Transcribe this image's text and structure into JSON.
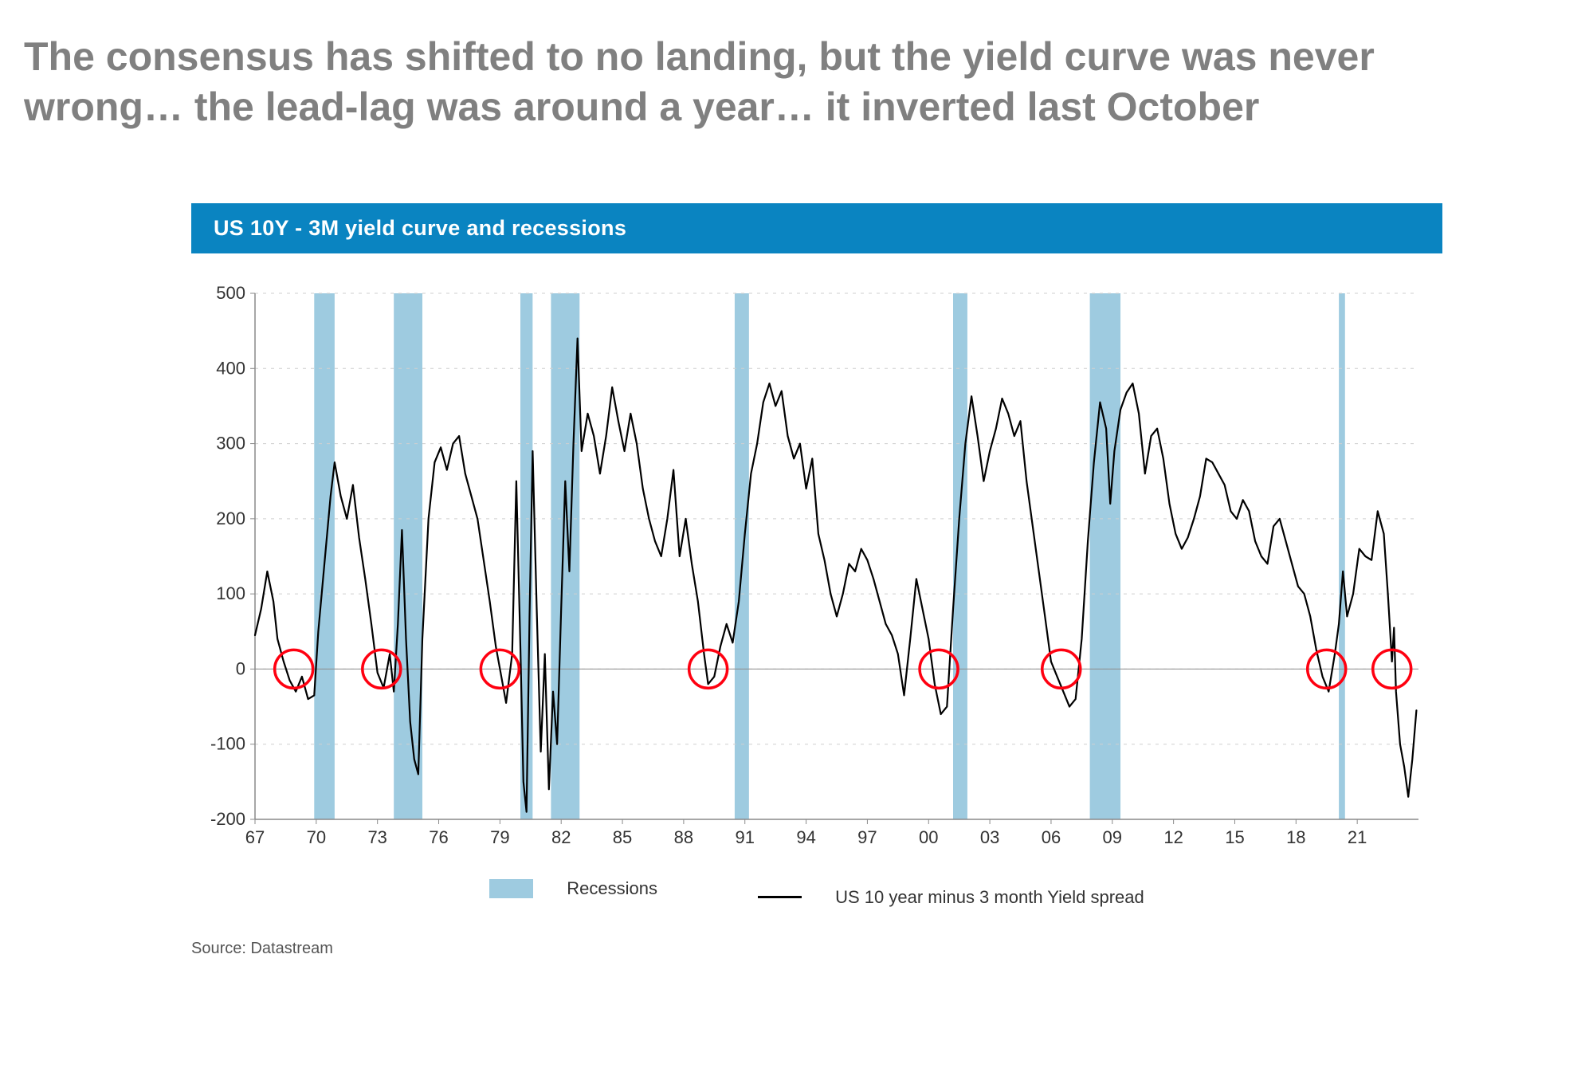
{
  "headline": "The consensus has shifted to no landing, but the yield curve was never wrong… the lead-lag was around a year… it inverted last October",
  "chart": {
    "type": "line",
    "title": "US 10Y - 3M yield curve and recessions",
    "title_bg": "#0a84c1",
    "title_color": "#ffffff",
    "title_fontsize": 27,
    "background_color": "#ffffff",
    "axis_color": "#8a8a8a",
    "grid_color": "#cfcfcf",
    "line_color": "#000000",
    "line_width": 2.2,
    "recession_color": "#9ecbe0",
    "circle_color": "#ff0010",
    "circle_stroke": 3.5,
    "circle_radius": 24,
    "xlim": [
      1967,
      2024
    ],
    "ylim": [
      -200,
      500
    ],
    "xticks": [
      67,
      70,
      73,
      76,
      79,
      82,
      85,
      88,
      91,
      94,
      97,
      100,
      103,
      106,
      109,
      112,
      115,
      118,
      121
    ],
    "xtick_labels": [
      "67",
      "70",
      "73",
      "76",
      "79",
      "82",
      "85",
      "88",
      "91",
      "94",
      "97",
      "00",
      "03",
      "06",
      "09",
      "12",
      "15",
      "18",
      "21"
    ],
    "yticks": [
      -200,
      -100,
      0,
      100,
      200,
      300,
      400,
      500
    ],
    "ytick_labels": [
      "-200",
      "-100",
      "0",
      "100",
      "200",
      "300",
      "400",
      "500"
    ],
    "tick_fontsize": 22,
    "tick_color": "#333333",
    "recessions": [
      {
        "start": 1969.9,
        "end": 1970.9
      },
      {
        "start": 1973.8,
        "end": 1975.2
      },
      {
        "start": 1980.0,
        "end": 1980.6
      },
      {
        "start": 1981.5,
        "end": 1982.9
      },
      {
        "start": 1990.5,
        "end": 1991.2
      },
      {
        "start": 2001.2,
        "end": 2001.9
      },
      {
        "start": 2007.9,
        "end": 2009.4
      },
      {
        "start": 2020.1,
        "end": 2020.4
      }
    ],
    "circle_years": [
      1968.9,
      1973.2,
      1979.0,
      1989.2,
      2000.5,
      2006.5,
      2019.5,
      2022.7
    ],
    "series": {
      "name": "US 10 year minus 3 month Yield spread",
      "data": [
        [
          1967.0,
          45
        ],
        [
          1967.3,
          80
        ],
        [
          1967.6,
          130
        ],
        [
          1967.9,
          90
        ],
        [
          1968.1,
          40
        ],
        [
          1968.4,
          10
        ],
        [
          1968.7,
          -15
        ],
        [
          1969.0,
          -30
        ],
        [
          1969.3,
          -10
        ],
        [
          1969.6,
          -40
        ],
        [
          1969.9,
          -35
        ],
        [
          1970.1,
          50
        ],
        [
          1970.4,
          140
        ],
        [
          1970.7,
          230
        ],
        [
          1970.9,
          275
        ],
        [
          1971.2,
          230
        ],
        [
          1971.5,
          200
        ],
        [
          1971.8,
          245
        ],
        [
          1972.1,
          175
        ],
        [
          1972.4,
          120
        ],
        [
          1972.7,
          60
        ],
        [
          1973.0,
          -5
        ],
        [
          1973.3,
          -25
        ],
        [
          1973.6,
          20
        ],
        [
          1973.8,
          -30
        ],
        [
          1974.0,
          60
        ],
        [
          1974.2,
          185
        ],
        [
          1974.4,
          40
        ],
        [
          1974.6,
          -70
        ],
        [
          1974.8,
          -120
        ],
        [
          1975.0,
          -140
        ],
        [
          1975.2,
          40
        ],
        [
          1975.5,
          200
        ],
        [
          1975.8,
          275
        ],
        [
          1976.1,
          295
        ],
        [
          1976.4,
          265
        ],
        [
          1976.7,
          300
        ],
        [
          1977.0,
          310
        ],
        [
          1977.3,
          260
        ],
        [
          1977.6,
          230
        ],
        [
          1977.9,
          200
        ],
        [
          1978.2,
          145
        ],
        [
          1978.5,
          90
        ],
        [
          1978.8,
          30
        ],
        [
          1979.0,
          0
        ],
        [
          1979.3,
          -45
        ],
        [
          1979.6,
          20
        ],
        [
          1979.8,
          250
        ],
        [
          1980.0,
          30
        ],
        [
          1980.15,
          -150
        ],
        [
          1980.3,
          -190
        ],
        [
          1980.45,
          70
        ],
        [
          1980.6,
          290
        ],
        [
          1980.8,
          80
        ],
        [
          1981.0,
          -110
        ],
        [
          1981.2,
          20
        ],
        [
          1981.4,
          -160
        ],
        [
          1981.6,
          -30
        ],
        [
          1981.8,
          -100
        ],
        [
          1982.0,
          80
        ],
        [
          1982.2,
          250
        ],
        [
          1982.4,
          130
        ],
        [
          1982.6,
          300
        ],
        [
          1982.8,
          440
        ],
        [
          1983.0,
          290
        ],
        [
          1983.3,
          340
        ],
        [
          1983.6,
          310
        ],
        [
          1983.9,
          260
        ],
        [
          1984.2,
          310
        ],
        [
          1984.5,
          375
        ],
        [
          1984.8,
          330
        ],
        [
          1985.1,
          290
        ],
        [
          1985.4,
          340
        ],
        [
          1985.7,
          300
        ],
        [
          1986.0,
          240
        ],
        [
          1986.3,
          200
        ],
        [
          1986.6,
          170
        ],
        [
          1986.9,
          150
        ],
        [
          1987.2,
          200
        ],
        [
          1987.5,
          265
        ],
        [
          1987.8,
          150
        ],
        [
          1988.1,
          200
        ],
        [
          1988.4,
          140
        ],
        [
          1988.7,
          90
        ],
        [
          1989.0,
          20
        ],
        [
          1989.2,
          -20
        ],
        [
          1989.5,
          -10
        ],
        [
          1989.8,
          30
        ],
        [
          1990.1,
          60
        ],
        [
          1990.4,
          35
        ],
        [
          1990.7,
          90
        ],
        [
          1991.0,
          180
        ],
        [
          1991.3,
          260
        ],
        [
          1991.6,
          300
        ],
        [
          1991.9,
          355
        ],
        [
          1992.2,
          380
        ],
        [
          1992.5,
          350
        ],
        [
          1992.8,
          370
        ],
        [
          1993.1,
          310
        ],
        [
          1993.4,
          280
        ],
        [
          1993.7,
          300
        ],
        [
          1994.0,
          240
        ],
        [
          1994.3,
          280
        ],
        [
          1994.6,
          180
        ],
        [
          1994.9,
          145
        ],
        [
          1995.2,
          100
        ],
        [
          1995.5,
          70
        ],
        [
          1995.8,
          100
        ],
        [
          1996.1,
          140
        ],
        [
          1996.4,
          130
        ],
        [
          1996.7,
          160
        ],
        [
          1997.0,
          145
        ],
        [
          1997.3,
          120
        ],
        [
          1997.6,
          90
        ],
        [
          1997.9,
          60
        ],
        [
          1998.2,
          45
        ],
        [
          1998.5,
          20
        ],
        [
          1998.8,
          -35
        ],
        [
          1999.1,
          40
        ],
        [
          1999.4,
          120
        ],
        [
          1999.7,
          80
        ],
        [
          2000.0,
          40
        ],
        [
          2000.3,
          -20
        ],
        [
          2000.6,
          -60
        ],
        [
          2000.9,
          -50
        ],
        [
          2001.2,
          80
        ],
        [
          2001.5,
          200
        ],
        [
          2001.8,
          300
        ],
        [
          2002.1,
          363
        ],
        [
          2002.4,
          310
        ],
        [
          2002.7,
          250
        ],
        [
          2003.0,
          290
        ],
        [
          2003.3,
          320
        ],
        [
          2003.6,
          360
        ],
        [
          2003.9,
          340
        ],
        [
          2004.2,
          310
        ],
        [
          2004.5,
          330
        ],
        [
          2004.8,
          250
        ],
        [
          2005.1,
          190
        ],
        [
          2005.4,
          130
        ],
        [
          2005.7,
          70
        ],
        [
          2006.0,
          10
        ],
        [
          2006.3,
          -10
        ],
        [
          2006.6,
          -30
        ],
        [
          2006.9,
          -50
        ],
        [
          2007.2,
          -40
        ],
        [
          2007.5,
          40
        ],
        [
          2007.8,
          170
        ],
        [
          2008.1,
          275
        ],
        [
          2008.4,
          355
        ],
        [
          2008.7,
          320
        ],
        [
          2008.9,
          220
        ],
        [
          2009.1,
          290
        ],
        [
          2009.4,
          345
        ],
        [
          2009.7,
          368
        ],
        [
          2010.0,
          380
        ],
        [
          2010.3,
          340
        ],
        [
          2010.6,
          260
        ],
        [
          2010.9,
          310
        ],
        [
          2011.2,
          320
        ],
        [
          2011.5,
          280
        ],
        [
          2011.8,
          220
        ],
        [
          2012.1,
          180
        ],
        [
          2012.4,
          160
        ],
        [
          2012.7,
          175
        ],
        [
          2013.0,
          200
        ],
        [
          2013.3,
          230
        ],
        [
          2013.6,
          280
        ],
        [
          2013.9,
          275
        ],
        [
          2014.2,
          260
        ],
        [
          2014.5,
          245
        ],
        [
          2014.8,
          210
        ],
        [
          2015.1,
          200
        ],
        [
          2015.4,
          225
        ],
        [
          2015.7,
          210
        ],
        [
          2016.0,
          170
        ],
        [
          2016.3,
          150
        ],
        [
          2016.6,
          140
        ],
        [
          2016.9,
          190
        ],
        [
          2017.2,
          200
        ],
        [
          2017.5,
          170
        ],
        [
          2017.8,
          140
        ],
        [
          2018.1,
          110
        ],
        [
          2018.4,
          100
        ],
        [
          2018.7,
          70
        ],
        [
          2019.0,
          25
        ],
        [
          2019.3,
          -10
        ],
        [
          2019.6,
          -30
        ],
        [
          2019.9,
          20
        ],
        [
          2020.1,
          60
        ],
        [
          2020.3,
          130
        ],
        [
          2020.5,
          70
        ],
        [
          2020.8,
          100
        ],
        [
          2021.1,
          160
        ],
        [
          2021.4,
          150
        ],
        [
          2021.7,
          145
        ],
        [
          2022.0,
          210
        ],
        [
          2022.3,
          180
        ],
        [
          2022.5,
          100
        ],
        [
          2022.7,
          10
        ],
        [
          2022.8,
          55
        ],
        [
          2022.9,
          -30
        ],
        [
          2023.1,
          -100
        ],
        [
          2023.3,
          -130
        ],
        [
          2023.5,
          -170
        ],
        [
          2023.7,
          -120
        ],
        [
          2023.9,
          -55
        ]
      ]
    },
    "legend": {
      "recessions_label": "Recessions",
      "line_label": "US 10 year minus 3 month Yield spread"
    }
  },
  "source": "Source: Datastream"
}
